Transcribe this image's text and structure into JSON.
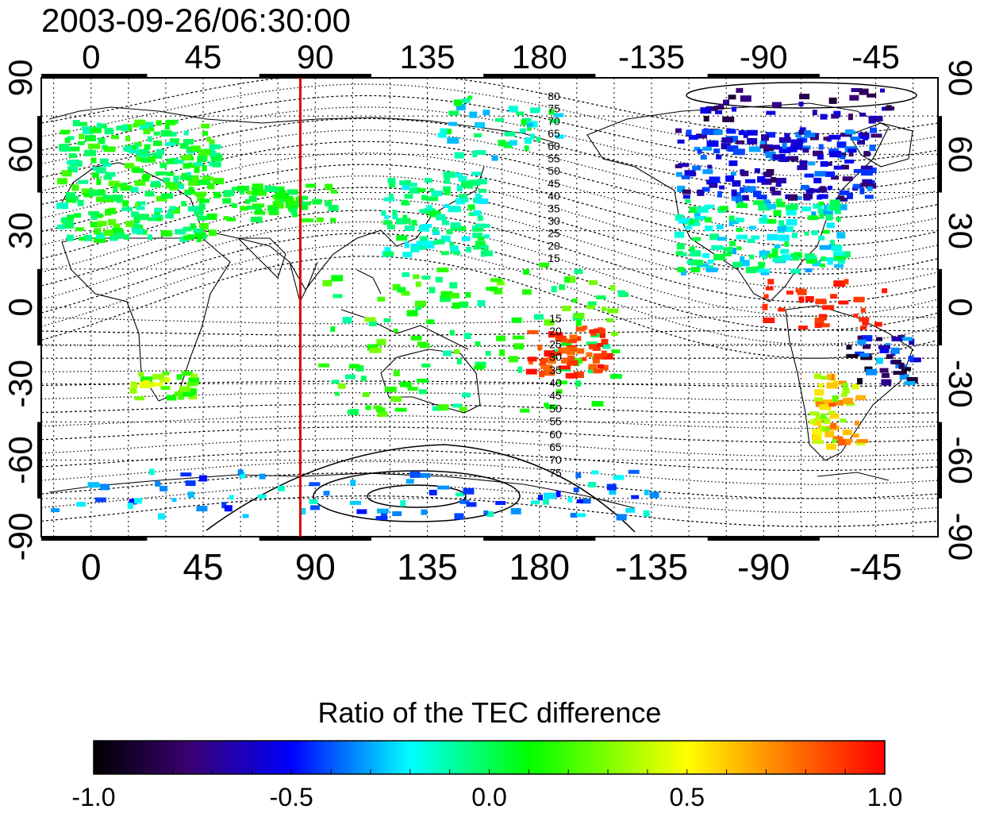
{
  "timestamp": "2003-09-26/06:30:00",
  "map": {
    "lon_ticks": [
      "0",
      "45",
      "90",
      "135",
      "180",
      "-135",
      "-90",
      "-45"
    ],
    "lat_ticks": [
      "90",
      "60",
      "30",
      "0",
      "-30",
      "-60",
      "-90"
    ],
    "meridian_marker_longitude": 84,
    "meridian_marker_color": "#e00000",
    "contour_labels_north": [
      "80",
      "75",
      "70",
      "65",
      "60",
      "55",
      "50",
      "45",
      "40",
      "35",
      "30",
      "25",
      "20",
      "15"
    ],
    "contour_labels_south": [
      "15",
      "20",
      "25",
      "30",
      "35",
      "40",
      "45",
      "50",
      "55",
      "60",
      "65",
      "70",
      "75"
    ],
    "grid": true
  },
  "colorbar": {
    "title": "Ratio of the TEC difference",
    "tick_labels": [
      "-1.0",
      "-0.5",
      "0.0",
      "0.5",
      "1.0"
    ],
    "range": [
      -1.0,
      1.0
    ],
    "colors": [
      "#000000",
      "#4b0082",
      "#0000ff",
      "#00ffff",
      "#00ff00",
      "#ffff00",
      "#ff0000"
    ]
  }
}
